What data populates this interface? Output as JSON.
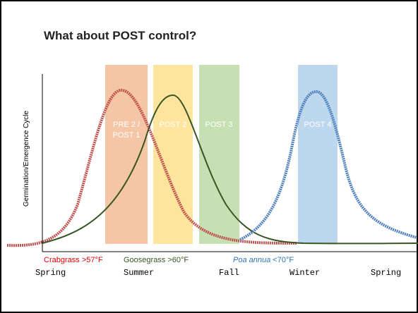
{
  "header": {
    "title": "What about POST control?"
  },
  "y_axis_label": "Germination/Emergence Cycle",
  "windows": [
    {
      "lines": [
        "PRE 2 /",
        "POST 1"
      ]
    },
    {
      "lines": [
        "POST 2"
      ]
    },
    {
      "lines": [
        "POST 3"
      ]
    },
    {
      "lines": [
        "POST 4"
      ]
    }
  ],
  "species": [
    {
      "name": "Crabgrass",
      "threshold": ">57°F"
    },
    {
      "name": "Goosegrass",
      "threshold": ">60°F"
    },
    {
      "name": "Poa annua",
      "threshold": "<70°F"
    }
  ],
  "seasons": [
    "Spring",
    "Summer",
    "Fall",
    "Winter",
    "Spring"
  ]
}
